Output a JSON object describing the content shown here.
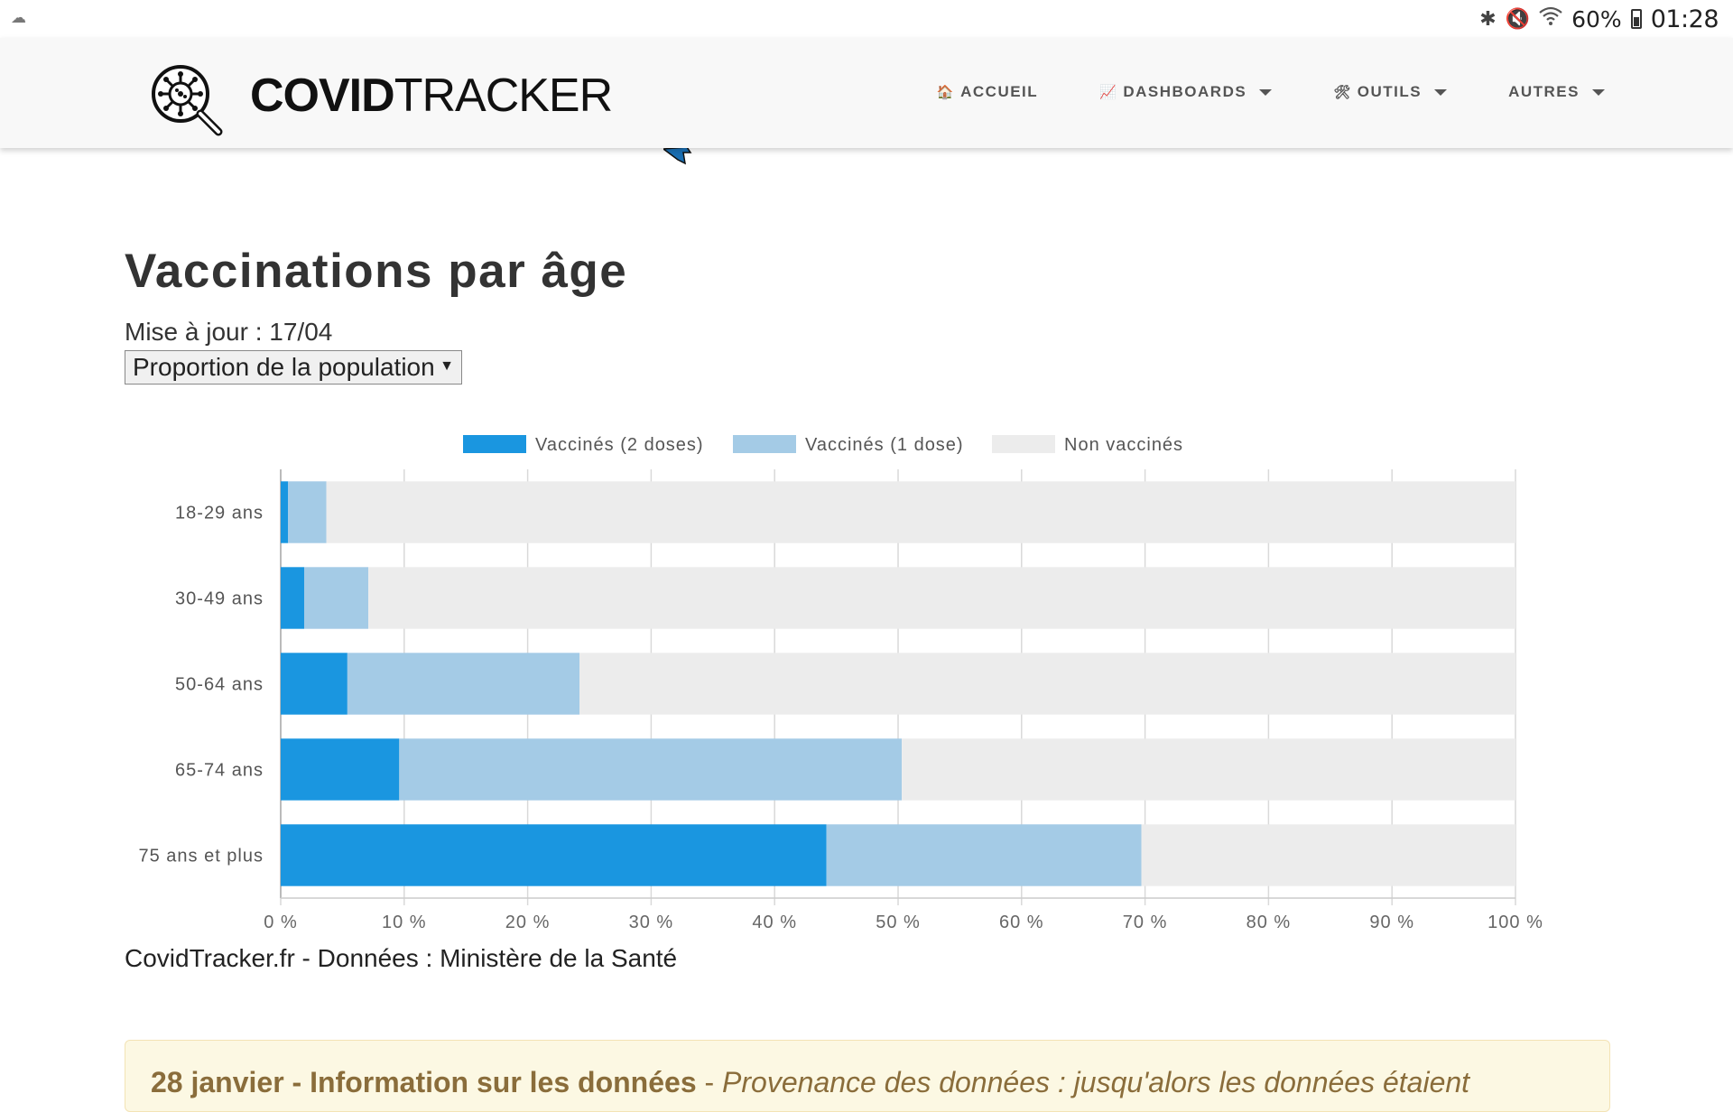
{
  "status_bar": {
    "battery": "60%",
    "time": "01:28",
    "left_icon": "sync-cloud-icon",
    "right_icons": [
      "bluetooth-icon",
      "mute-icon",
      "wifi-icon",
      "battery-icon"
    ]
  },
  "navbar": {
    "brand_bold": "COVID",
    "brand_light": "TRACKER",
    "items": [
      {
        "icon": "🏠",
        "label": "ACCUEIL",
        "dropdown": false
      },
      {
        "icon": "📈",
        "label": "DASHBOARDS",
        "dropdown": true
      },
      {
        "icon": "🛠",
        "label": "OUTILS",
        "dropdown": true
      },
      {
        "icon": "",
        "label": "AUTRES",
        "dropdown": true
      }
    ]
  },
  "page": {
    "title": "Vaccinations par âge",
    "updated": "Mise à jour : 17/04",
    "select_value": "Proportion de la population",
    "select_arrow": "▼",
    "source": "CovidTracker.fr - Données : Ministère de la Santé"
  },
  "notice": {
    "date": "28 janvier",
    "heading": "Information sur les données",
    "body": "Provenance des données : jusqu'alors les données étaient"
  },
  "colors": {
    "two_doses": "#1a96e0",
    "one_dose": "#a4cbe6",
    "unvaccinated": "#ececec",
    "grid": "#d9d9d9"
  },
  "chart_data": {
    "type": "bar",
    "orientation": "horizontal",
    "stacked": true,
    "categories": [
      "18-29 ans",
      "30-49 ans",
      "50-64 ans",
      "65-74 ans",
      "75 ans et plus"
    ],
    "series": [
      {
        "name": "Vaccinés (2 doses)",
        "values": [
          0.6,
          1.9,
          5.4,
          9.6,
          44.2
        ]
      },
      {
        "name": "Vaccinés (1 dose)",
        "values": [
          3.1,
          5.2,
          18.8,
          40.7,
          25.5
        ]
      },
      {
        "name": "Non vaccinés",
        "values": [
          96.3,
          92.9,
          75.8,
          49.7,
          30.3
        ]
      }
    ],
    "x_ticks": [
      "0 %",
      "10 %",
      "20 %",
      "30 %",
      "40 %",
      "50 %",
      "60 %",
      "70 %",
      "80 %",
      "90 %",
      "100 %"
    ],
    "xlim": [
      0,
      100
    ],
    "grid": true,
    "legend_position": "top-center"
  }
}
